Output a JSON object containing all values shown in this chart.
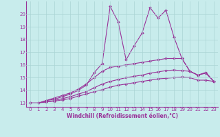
{
  "xlabel": "Windchill (Refroidissement éolien,°C)",
  "bg_color": "#c8ecec",
  "grid_color": "#aad4d4",
  "line_color": "#993399",
  "xlim": [
    -0.5,
    23.5
  ],
  "ylim": [
    12.7,
    21.0
  ],
  "yticks": [
    13,
    14,
    15,
    16,
    17,
    18,
    19,
    20
  ],
  "xticks": [
    0,
    1,
    2,
    3,
    4,
    5,
    6,
    7,
    8,
    9,
    10,
    11,
    12,
    13,
    14,
    15,
    16,
    17,
    18,
    19,
    20,
    21,
    22,
    23
  ],
  "series": [
    [
      13.0,
      13.0,
      13.2,
      13.3,
      13.5,
      13.7,
      14.0,
      14.4,
      15.4,
      16.1,
      20.6,
      19.4,
      16.4,
      17.5,
      18.5,
      20.5,
      19.7,
      20.3,
      18.2,
      16.5,
      15.5,
      15.2,
      15.4,
      14.7
    ],
    [
      13.0,
      13.0,
      13.2,
      13.4,
      13.6,
      13.8,
      14.1,
      14.5,
      15.0,
      15.5,
      15.8,
      15.9,
      16.0,
      16.1,
      16.2,
      16.3,
      16.4,
      16.5,
      16.5,
      16.5,
      15.5,
      15.2,
      15.4,
      14.7
    ],
    [
      13.0,
      13.0,
      13.1,
      13.2,
      13.35,
      13.5,
      13.7,
      13.9,
      14.2,
      14.5,
      14.7,
      14.85,
      15.0,
      15.1,
      15.2,
      15.35,
      15.45,
      15.55,
      15.6,
      15.55,
      15.5,
      15.2,
      15.35,
      14.7
    ],
    [
      13.0,
      13.0,
      13.1,
      13.15,
      13.25,
      13.35,
      13.55,
      13.7,
      13.9,
      14.05,
      14.25,
      14.4,
      14.5,
      14.6,
      14.7,
      14.8,
      14.9,
      14.95,
      15.0,
      15.05,
      15.0,
      14.8,
      14.8,
      14.7
    ]
  ],
  "marker": "D",
  "markersize": 2.0,
  "linewidth": 0.8,
  "tick_fontsize": 5.0,
  "xlabel_fontsize": 5.5
}
